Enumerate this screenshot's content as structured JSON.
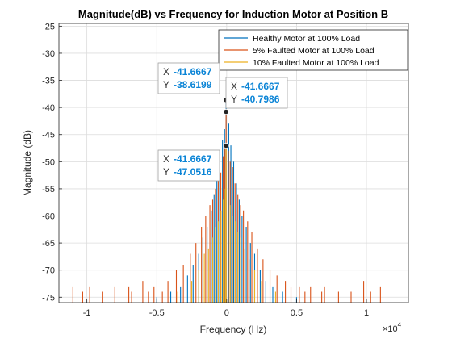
{
  "chart_data": {
    "type": "line",
    "title": "Magnitude(dB) vs Frequency for Induction Motor at Position B",
    "xlabel": "Frequency (Hz)",
    "ylabel": "Magnitude (dB)",
    "x_multiplier_label": "×10^4",
    "x_multiplier_base": "×10",
    "x_multiplier_exp": "4",
    "xlim": [
      -12000,
      13000
    ],
    "ylim": [
      -76,
      -24.5
    ],
    "x_ticks": [
      -10000,
      -5000,
      0,
      5000,
      10000
    ],
    "x_tick_labels": [
      "-1",
      "-0.5",
      "0",
      "0.5",
      "1"
    ],
    "y_ticks": [
      -75,
      -70,
      -65,
      -60,
      -55,
      -50,
      -45,
      -40,
      -35,
      -30,
      -25
    ],
    "y_tick_labels": [
      "-75",
      "-70",
      "-65",
      "-60",
      "-55",
      "-50",
      "-45",
      "-40",
      "-35",
      "-30",
      "-25"
    ],
    "grid": true,
    "legend_position": "top-right",
    "series": [
      {
        "name": "Healthy Motor at 100% Load",
        "color": "#0072BD",
        "peaks": [
          [
            -41.67,
            -38.62
          ],
          [
            -150,
            -44
          ],
          [
            150,
            -43
          ],
          [
            -300,
            -46
          ],
          [
            300,
            -47
          ],
          [
            -500,
            -49
          ],
          [
            500,
            -50
          ],
          [
            -700,
            -53
          ],
          [
            700,
            -54
          ],
          [
            -900,
            -56
          ],
          [
            900,
            -57
          ],
          [
            -1100,
            -59
          ],
          [
            1100,
            -60
          ],
          [
            -1400,
            -62
          ],
          [
            1400,
            -62
          ],
          [
            -1700,
            -64
          ],
          [
            1700,
            -65
          ],
          [
            -2000,
            -67
          ],
          [
            2000,
            -67
          ],
          [
            -2400,
            -69
          ],
          [
            2400,
            -70
          ],
          [
            -2800,
            -71
          ],
          [
            2800,
            -72
          ],
          [
            -3300,
            -73
          ],
          [
            3300,
            -73
          ],
          [
            -4000,
            -74
          ],
          [
            4000,
            -74
          ],
          [
            -5000,
            -75
          ],
          [
            5000,
            -75
          ]
        ]
      },
      {
        "name": "5% Faulted Motor at 100% Load",
        "color": "#D95319",
        "peaks": [
          [
            -41.67,
            -40.8
          ],
          [
            -120,
            -47
          ],
          [
            120,
            -48
          ],
          [
            -250,
            -49
          ],
          [
            250,
            -50
          ],
          [
            -420,
            -52
          ],
          [
            420,
            -51
          ],
          [
            -600,
            -53
          ],
          [
            600,
            -54
          ],
          [
            -800,
            -55
          ],
          [
            800,
            -56
          ],
          [
            -1000,
            -57
          ],
          [
            1000,
            -58
          ],
          [
            -1200,
            -58
          ],
          [
            1200,
            -59
          ],
          [
            -1500,
            -60
          ],
          [
            1500,
            -61
          ],
          [
            -1800,
            -62
          ],
          [
            1800,
            -63
          ],
          [
            -2200,
            -65
          ],
          [
            2200,
            -66
          ],
          [
            -2600,
            -67
          ],
          [
            2600,
            -68
          ],
          [
            -3100,
            -69
          ],
          [
            3100,
            -70
          ],
          [
            -3600,
            -70
          ],
          [
            3600,
            -71
          ],
          [
            -4200,
            -72
          ],
          [
            4200,
            -72
          ],
          [
            -5200,
            -73
          ],
          [
            5200,
            -73
          ],
          [
            -6000,
            -72
          ],
          [
            6000,
            -73
          ],
          [
            -7000,
            -73
          ],
          [
            7000,
            -73
          ],
          [
            -8000,
            -73
          ],
          [
            8000,
            -74
          ],
          [
            -9800,
            -73
          ],
          [
            9800,
            -72
          ],
          [
            -11000,
            -73
          ],
          [
            11000,
            -73
          ],
          [
            -10300,
            -74
          ],
          [
            10300,
            -74
          ],
          [
            -6800,
            -74
          ],
          [
            6800,
            -74
          ],
          [
            -5600,
            -74
          ],
          [
            5600,
            -74
          ],
          [
            -4600,
            -74
          ],
          [
            4600,
            -73
          ],
          [
            -8900,
            -74
          ],
          [
            8900,
            -74
          ]
        ]
      },
      {
        "name": "10% Faulted Motor at 100% Load",
        "color": "#EDB120",
        "peaks": [
          [
            -41.67,
            -47.05
          ],
          [
            -100,
            -55
          ],
          [
            100,
            -55
          ],
          [
            -250,
            -57
          ],
          [
            250,
            -58
          ],
          [
            -400,
            -59
          ],
          [
            400,
            -60
          ],
          [
            -600,
            -61
          ],
          [
            600,
            -61
          ],
          [
            -800,
            -62
          ],
          [
            800,
            -63
          ],
          [
            -1000,
            -64
          ],
          [
            1000,
            -64
          ],
          [
            -1300,
            -66
          ],
          [
            1300,
            -66
          ],
          [
            -1600,
            -67
          ],
          [
            1600,
            -68
          ],
          [
            -2000,
            -70
          ],
          [
            2000,
            -70
          ],
          [
            -2500,
            -72
          ],
          [
            2500,
            -72
          ],
          [
            -3500,
            -74
          ],
          [
            3500,
            -74
          ]
        ]
      }
    ],
    "datatips": [
      {
        "x_label": "X",
        "x_value": "-41.6667",
        "y_label": "Y",
        "y_value": "-38.6199",
        "x": -41.67,
        "y": -38.62
      },
      {
        "x_label": "X",
        "x_value": "-41.6667",
        "y_label": "Y",
        "y_value": "-40.7986",
        "x": -41.67,
        "y": -40.8
      },
      {
        "x_label": "X",
        "x_value": "-41.6667",
        "y_label": "Y",
        "y_value": "-47.0516",
        "x": -41.67,
        "y": -47.05
      }
    ]
  }
}
